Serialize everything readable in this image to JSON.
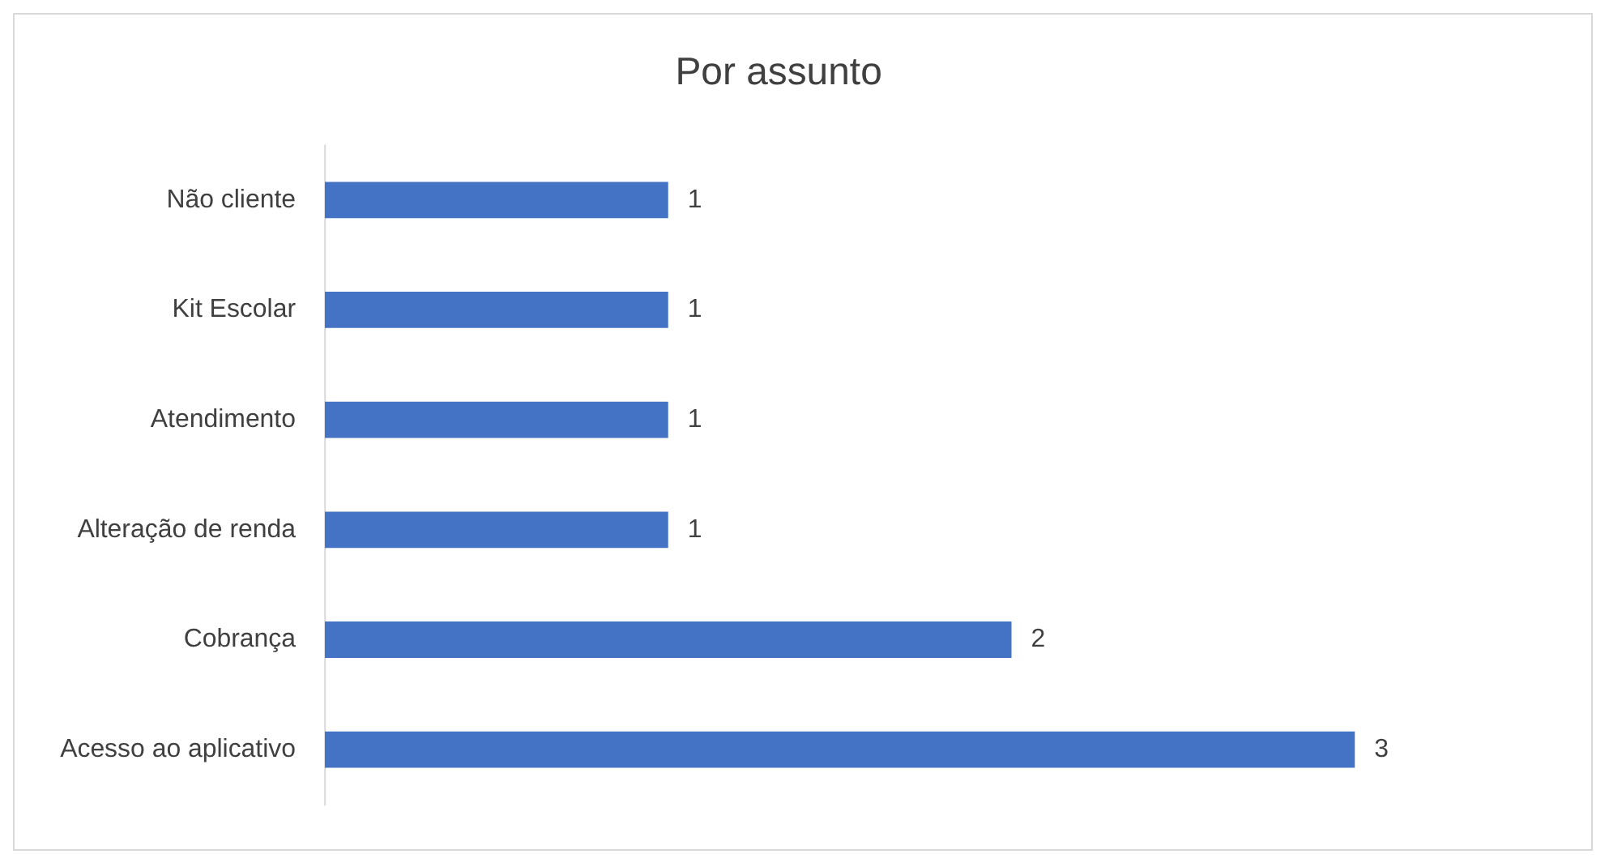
{
  "chart_data": {
    "type": "bar",
    "title": "Por assunto",
    "orientation": "horizontal",
    "categories": [
      "Não cliente",
      "Kit Escolar",
      "Atendimento",
      "Alteração de renda",
      "Cobrança",
      "Acesso ao aplicativo"
    ],
    "values": [
      1,
      1,
      1,
      1,
      2,
      3
    ],
    "color": "#4472c4",
    "data_labels": true,
    "legend": false
  }
}
